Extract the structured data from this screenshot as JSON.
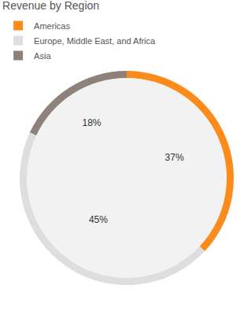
{
  "chart_data": {
    "type": "donut",
    "title": "Revenue by Region",
    "categories": [
      "Americas",
      "Europe, Middle East, and Africa",
      "Asia"
    ],
    "values": [
      37,
      45,
      18
    ],
    "value_labels": [
      "37%",
      "45%",
      "18%"
    ],
    "colors": [
      "#fb8c1c",
      "#dedede",
      "#8e8179"
    ],
    "data_labels": true,
    "legend": "top-left"
  }
}
